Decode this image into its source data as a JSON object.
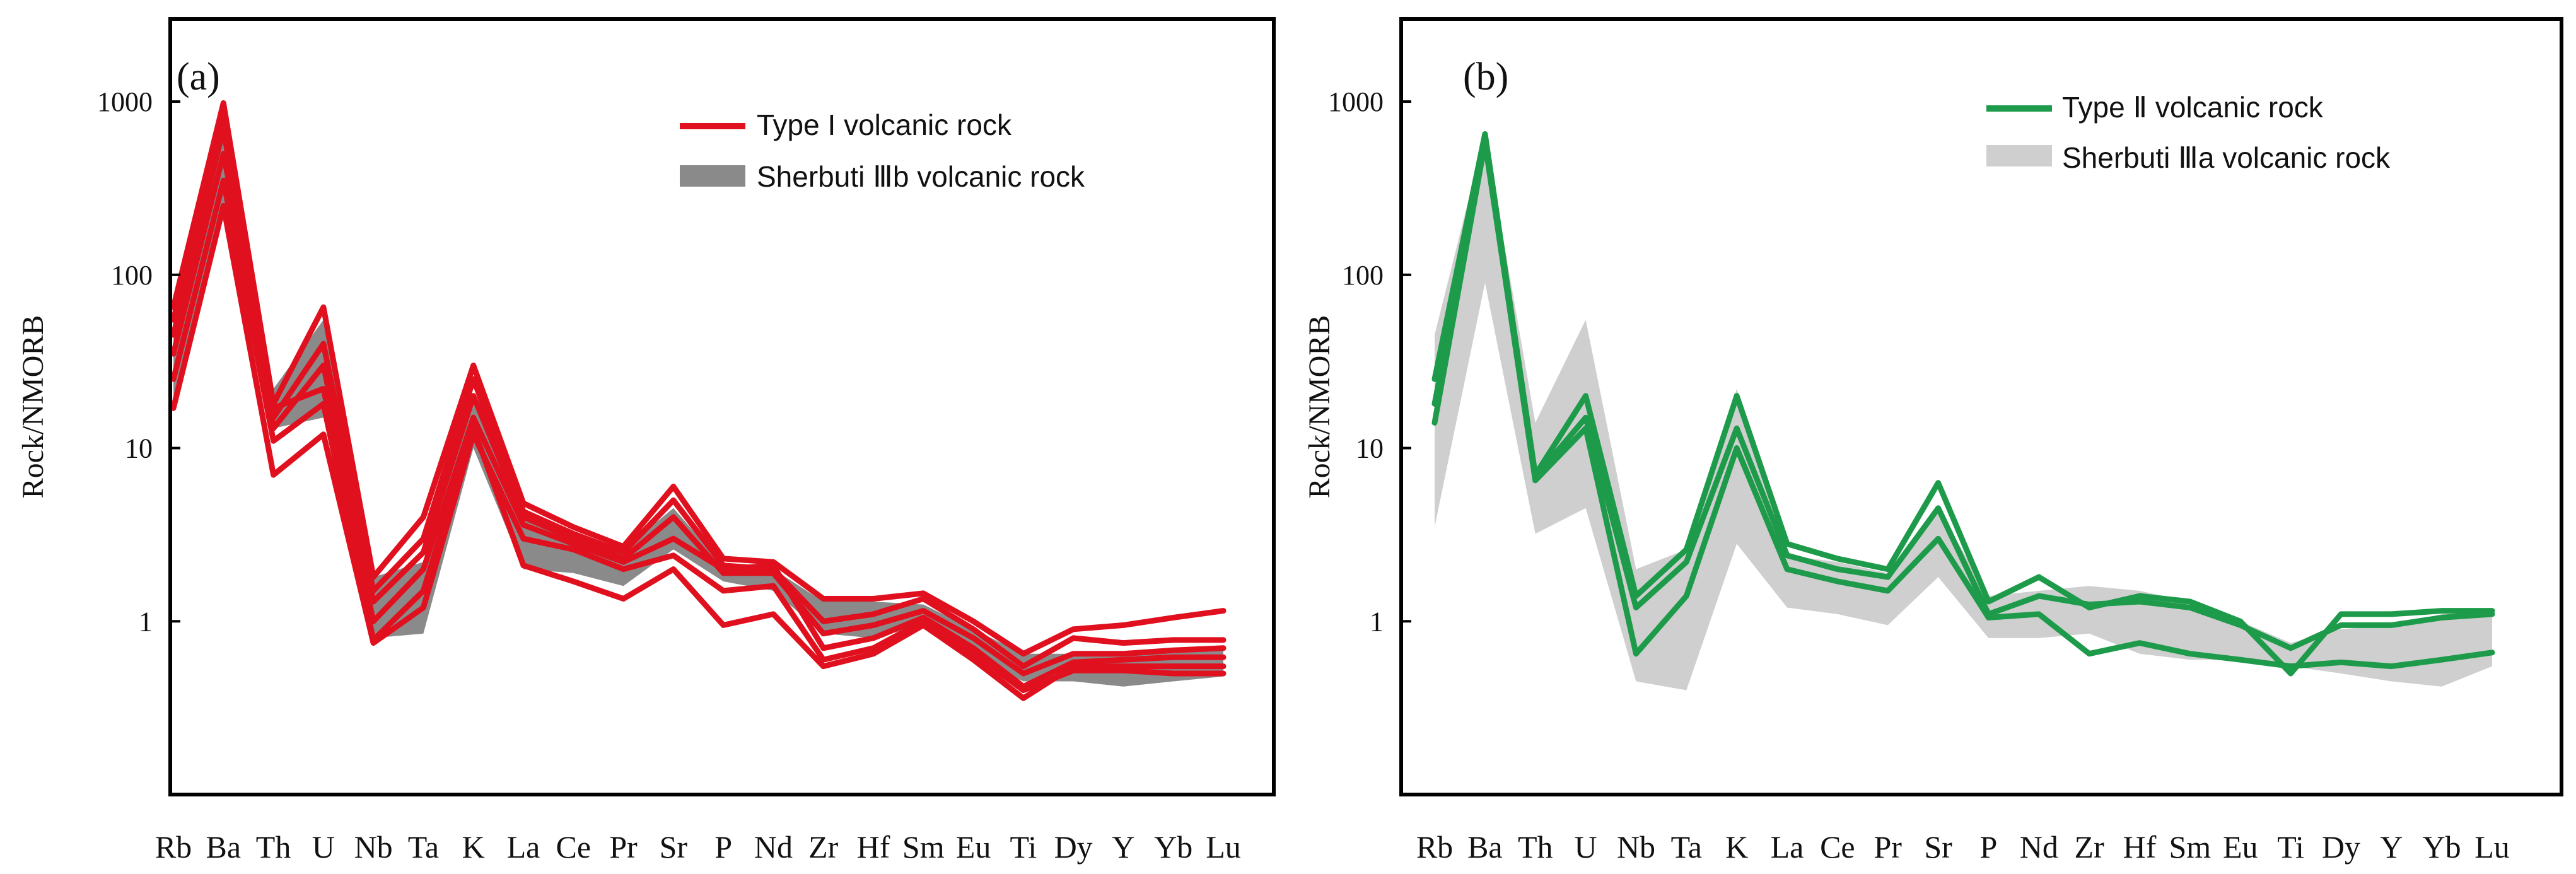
{
  "chart_data": [
    {
      "type": "line",
      "panel_label": "(a)",
      "ylabel": "Rock/NMORB",
      "xlabel": "",
      "yscale": "log",
      "ylim": [
        0.1,
        3000
      ],
      "yticks": [
        1,
        10,
        100,
        1000
      ],
      "ytick_labels": [
        "1",
        "10",
        "100",
        "1000"
      ],
      "categories": [
        "Rb",
        "Ba",
        "Th",
        "U",
        "Nb",
        "Ta",
        "K",
        "La",
        "Ce",
        "Pr",
        "Sr",
        "P",
        "Nd",
        "Zr",
        "Hf",
        "Sm",
        "Eu",
        "Ti",
        "Dy",
        "Y",
        "Yb",
        "Lu"
      ],
      "legend": [
        {
          "label": "Type I volcanic rock",
          "kind": "line",
          "color": "#e0101e"
        },
        {
          "label": "Sherbuti  Ⅲb  volcanic rock",
          "kind": "band",
          "color": "#8a8a8a"
        }
      ],
      "band": {
        "name": "Sherbuti Ⅲb volcanic rock",
        "color": "#8a8a8a",
        "lower": [
          20,
          220,
          13,
          15,
          0.8,
          0.85,
          10,
          2.0,
          1.9,
          1.6,
          2.6,
          1.7,
          1.5,
          0.85,
          0.8,
          0.95,
          0.6,
          0.45,
          0.45,
          0.42,
          0.45,
          0.48
        ],
        "upper": [
          60,
          800,
          22,
          55,
          1.8,
          2.2,
          20,
          4.2,
          3.1,
          2.6,
          4.5,
          2.1,
          2.0,
          1.3,
          1.3,
          1.25,
          0.9,
          0.65,
          0.65,
          0.65,
          0.7,
          0.72
        ]
      },
      "series": [
        {
          "name": "Type I-1",
          "color": "#e0101e",
          "values": [
            65,
            980,
            18,
            65,
            1.8,
            4.0,
            30,
            4.8,
            3.5,
            2.7,
            6.0,
            2.3,
            2.2,
            1.35,
            1.35,
            1.45,
            1.0,
            0.65,
            0.9,
            0.95,
            1.05,
            1.15
          ]
        },
        {
          "name": "Type I-2",
          "color": "#e0101e",
          "values": [
            55,
            850,
            15,
            40,
            1.5,
            3.0,
            25,
            4.3,
            3.2,
            2.5,
            5.0,
            2.1,
            2.0,
            1.0,
            1.1,
            1.35,
            0.9,
            0.55,
            0.8,
            0.75,
            0.78,
            0.78
          ]
        },
        {
          "name": "Type I-3",
          "color": "#e0101e",
          "values": [
            45,
            700,
            13,
            30,
            1.3,
            2.5,
            20,
            4.0,
            3.0,
            2.3,
            4.0,
            1.9,
            1.9,
            0.85,
            0.95,
            1.15,
            0.8,
            0.5,
            0.65,
            0.65,
            0.68,
            0.7
          ]
        },
        {
          "name": "Type I-4",
          "color": "#e0101e",
          "values": [
            35,
            500,
            17,
            22,
            1.0,
            2.0,
            15,
            3.6,
            2.8,
            2.2,
            3.0,
            2.0,
            2.1,
            0.7,
            0.8,
            1.05,
            0.7,
            0.42,
            0.58,
            0.6,
            0.62,
            0.62
          ]
        },
        {
          "name": "Type I-5",
          "color": "#e0101e",
          "values": [
            25,
            350,
            11,
            18,
            0.78,
            1.5,
            13,
            2.1,
            1.7,
            1.35,
            2.0,
            0.95,
            1.1,
            0.55,
            0.65,
            0.95,
            0.6,
            0.36,
            0.55,
            0.55,
            0.55,
            0.55
          ]
        },
        {
          "name": "Type I-6",
          "color": "#e0101e",
          "values": [
            17,
            250,
            7,
            12,
            0.75,
            1.2,
            12,
            3.0,
            2.6,
            2.0,
            2.4,
            1.5,
            1.6,
            0.6,
            0.7,
            1.0,
            0.65,
            0.4,
            0.52,
            0.52,
            0.5,
            0.5
          ]
        }
      ]
    },
    {
      "type": "line",
      "panel_label": "(b)",
      "ylabel": "Rock/NMORB",
      "xlabel": "",
      "yscale": "log",
      "ylim": [
        0.1,
        3000
      ],
      "yticks": [
        1,
        10,
        100,
        1000
      ],
      "ytick_labels": [
        "1",
        "10",
        "100",
        "1000"
      ],
      "categories": [
        "Rb",
        "Ba",
        "Th",
        "U",
        "Nb",
        "Ta",
        "K",
        "La",
        "Ce",
        "Pr",
        "Sr",
        "P",
        "Nd",
        "Zr",
        "Hf",
        "Sm",
        "Eu",
        "Ti",
        "Dy",
        "Y",
        "Yb",
        "Lu"
      ],
      "legend": [
        {
          "label": "Type  Ⅱ  volcanic rock",
          "kind": "line",
          "color": "#1d9b4a"
        },
        {
          "label": "Sherbuti  Ⅲa  volcanic rock",
          "kind": "band",
          "color": "#cfcfcf"
        }
      ],
      "band": {
        "name": "Sherbuti Ⅲa volcanic rock",
        "color": "#cfcfcf",
        "lower": [
          3.5,
          90,
          3.2,
          4.5,
          0.45,
          0.4,
          2.8,
          1.2,
          1.1,
          0.95,
          1.8,
          0.8,
          0.8,
          0.85,
          0.65,
          0.6,
          0.6,
          0.55,
          0.5,
          0.45,
          0.42,
          0.55
        ],
        "upper": [
          45,
          650,
          14,
          55,
          2.0,
          2.6,
          22,
          2.4,
          2.2,
          1.9,
          4.5,
          1.4,
          1.5,
          1.6,
          1.5,
          1.3,
          1.0,
          0.75,
          0.9,
          0.95,
          1.1,
          1.15
        ]
      },
      "series": [
        {
          "name": "Type II-1",
          "color": "#1d9b4a",
          "values": [
            25,
            650,
            7,
            20,
            1.4,
            2.6,
            20,
            2.8,
            2.3,
            2.0,
            6.3,
            1.3,
            1.8,
            1.2,
            1.4,
            1.3,
            1.0,
            0.5,
            1.1,
            1.1,
            1.15,
            1.15
          ]
        },
        {
          "name": "Type II-2",
          "color": "#1d9b4a",
          "values": [
            18,
            600,
            6.8,
            15,
            1.2,
            2.2,
            13,
            2.4,
            2.0,
            1.8,
            4.5,
            1.1,
            1.4,
            1.25,
            1.3,
            1.2,
            0.95,
            0.7,
            0.95,
            0.95,
            1.05,
            1.1
          ]
        },
        {
          "name": "Type II-3",
          "color": "#1d9b4a",
          "values": [
            14,
            580,
            6.5,
            13,
            0.65,
            1.4,
            10,
            2.0,
            1.7,
            1.5,
            3.0,
            1.05,
            1.1,
            0.65,
            0.75,
            0.65,
            0.6,
            0.55,
            0.58,
            0.55,
            0.6,
            0.66
          ]
        }
      ]
    }
  ]
}
